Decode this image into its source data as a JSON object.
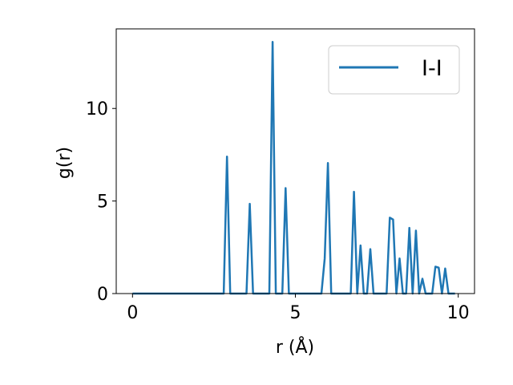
{
  "chart_data": {
    "type": "line",
    "title": "",
    "xlabel": "r (Å)",
    "ylabel": "g(r)",
    "xlim": [
      -0.5,
      10.5
    ],
    "ylim": [
      0,
      14.3
    ],
    "xticks": [
      0,
      5,
      10
    ],
    "xtick_labels": [
      "0",
      "5",
      "10"
    ],
    "yticks": [
      0,
      5,
      10
    ],
    "ytick_labels": [
      "0",
      "5",
      "10"
    ],
    "grid": false,
    "legend": {
      "position": "top-right",
      "entries": [
        "I-I"
      ]
    },
    "series": [
      {
        "name": "I-I",
        "color": "#1f77b4",
        "x": [
          0,
          2.8,
          2.9,
          3.0,
          3.5,
          3.6,
          3.7,
          4.2,
          4.3,
          4.4,
          4.6,
          4.7,
          4.8,
          5.8,
          5.9,
          6.0,
          6.1,
          6.7,
          6.8,
          6.9,
          7.0,
          7.1,
          7.2,
          7.3,
          7.4,
          7.8,
          7.9,
          8.0,
          8.1,
          8.2,
          8.3,
          8.4,
          8.5,
          8.6,
          8.7,
          8.8,
          8.9,
          9.0,
          9.2,
          9.3,
          9.4,
          9.5,
          9.6,
          9.7,
          9.8,
          9.9
        ],
        "y": [
          0,
          0,
          7.4,
          0,
          0,
          4.85,
          0,
          0,
          13.6,
          0,
          0,
          5.7,
          0,
          0,
          1.9,
          7.05,
          0,
          0,
          5.5,
          0,
          2.6,
          0,
          0,
          2.4,
          0,
          0,
          4.1,
          4.0,
          0,
          1.9,
          0,
          0,
          3.55,
          0,
          3.4,
          0,
          0.8,
          0,
          0,
          1.45,
          1.4,
          0,
          1.35,
          0,
          0,
          0
        ]
      }
    ]
  }
}
